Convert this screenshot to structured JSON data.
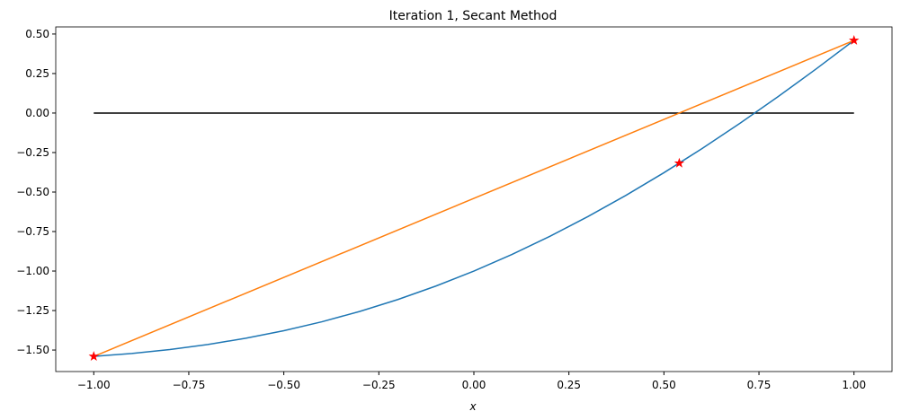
{
  "chart_data": {
    "type": "line",
    "title": "Iteration 1, Secant Method",
    "x_label": "x",
    "xlim": [
      -1.1,
      1.1
    ],
    "ylim": [
      -1.636,
      0.545
    ],
    "xticks": [
      {
        "value": -1,
        "label": "−1.00"
      },
      {
        "value": -0.75,
        "label": "−0.75"
      },
      {
        "value": -0.5,
        "label": "−0.50"
      },
      {
        "value": -0.25,
        "label": "−0.25"
      },
      {
        "value": 0,
        "label": "0.00"
      },
      {
        "value": 0.25,
        "label": "0.25"
      },
      {
        "value": 0.5,
        "label": "0.50"
      },
      {
        "value": 0.75,
        "label": "0.75"
      },
      {
        "value": 1,
        "label": "1.00"
      }
    ],
    "yticks": [
      {
        "value": 0.5,
        "label": "0.50"
      },
      {
        "value": 0.25,
        "label": "0.25"
      },
      {
        "value": 0,
        "label": "0.00"
      },
      {
        "value": -0.25,
        "label": "−0.25"
      },
      {
        "value": -0.5,
        "label": "−0.50"
      },
      {
        "value": -0.75,
        "label": "−0.75"
      },
      {
        "value": -1,
        "label": "−1.00"
      },
      {
        "value": -1.25,
        "label": "−1.25"
      },
      {
        "value": -1.5,
        "label": "−1.50"
      }
    ],
    "series": [
      {
        "color": "#000000",
        "x": [
          -1,
          1
        ],
        "values": [
          0,
          0
        ]
      },
      {
        "color": "#1f77b4",
        "x": [
          -1,
          -0.9,
          -0.8,
          -0.7,
          -0.6,
          -0.5,
          -0.4,
          -0.3,
          -0.2,
          -0.1,
          0,
          0.1,
          0.2,
          0.3,
          0.4,
          0.5,
          0.6,
          0.7,
          0.8,
          0.9,
          1
        ],
        "values": [
          -1.5403,
          -1.5216,
          -1.4967,
          -1.4648,
          -1.4253,
          -1.3776,
          -1.3211,
          -1.2553,
          -1.1801,
          -1.095,
          -1,
          -0.895,
          -0.7801,
          -0.6553,
          -0.5211,
          -0.3776,
          -0.2253,
          -0.0648,
          0.1033,
          0.2784,
          0.4597
        ]
      },
      {
        "color": "#ff7f0e",
        "x": [
          -1,
          1
        ],
        "values": [
          -1.5403,
          0.4597
        ]
      },
      {
        "color": "#ff0000",
        "marker": "star",
        "line": false,
        "x": [
          -1,
          0.5403,
          1
        ],
        "values": [
          -1.5403,
          -0.3173,
          0.4597
        ]
      }
    ]
  }
}
